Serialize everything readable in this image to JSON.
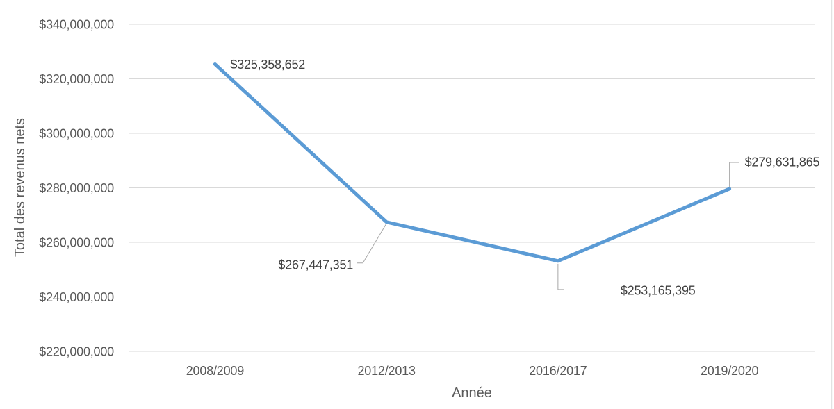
{
  "chart_data": {
    "type": "line",
    "title": "",
    "xlabel": "Année",
    "ylabel": "Total des revenus nets",
    "categories": [
      "2008/2009",
      "2012/2013",
      "2016/2017",
      "2019/2020"
    ],
    "values": [
      325358652,
      267447351,
      253165395,
      279631865
    ],
    "data_labels": [
      "$325,358,652",
      "$267,447,351",
      "$253,165,395",
      "$279,631,865"
    ],
    "ylim": [
      220000000,
      340000000
    ],
    "ytick_step": 20000000,
    "y_ticks": [
      {
        "value": 220000000,
        "label": "$220,000,000"
      },
      {
        "value": 240000000,
        "label": "$240,000,000"
      },
      {
        "value": 260000000,
        "label": "$260,000,000"
      },
      {
        "value": 280000000,
        "label": "$280,000,000"
      },
      {
        "value": 300000000,
        "label": "$300,000,000"
      },
      {
        "value": 320000000,
        "label": "$320,000,000"
      },
      {
        "value": 340000000,
        "label": "$340,000,000"
      }
    ],
    "grid": true,
    "legend": "none",
    "colors": {
      "line": "#5B9BD5",
      "gridline": "#D9D9D9",
      "tick_text": "#595959",
      "data_label_text": "#404040",
      "leader_line": "#A6A6A6",
      "background": "#FFFFFF",
      "right_border": "#E2E2E2"
    }
  }
}
